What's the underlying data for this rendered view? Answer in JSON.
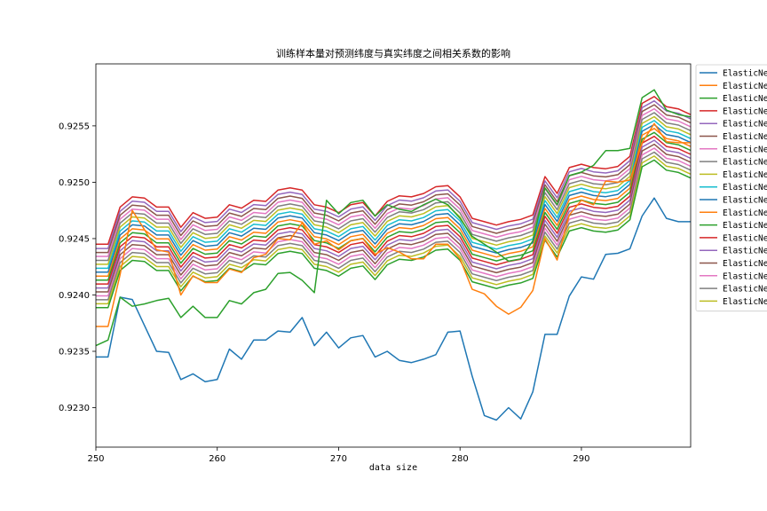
{
  "chart_data": {
    "type": "line",
    "title": "训练样本量对预测纬度与真实纬度之间相关系数的影响",
    "xlabel": "data size",
    "ylabel": "",
    "xlim": [
      250,
      299
    ],
    "ylim": [
      0.92265,
      0.92605
    ],
    "xticks": [
      250,
      260,
      270,
      280,
      290
    ],
    "yticks": [
      0.923,
      0.9235,
      0.924,
      0.9245,
      0.925,
      0.9255
    ],
    "ytick_labels": [
      "0.9230",
      "0.9235",
      "0.9240",
      "0.9245",
      "0.9250",
      "0.9255"
    ],
    "grid": false,
    "legend": {
      "placement": "upper-right-outside"
    },
    "x": [
      250,
      251,
      252,
      253,
      254,
      255,
      256,
      257,
      258,
      259,
      260,
      261,
      262,
      263,
      264,
      265,
      266,
      267,
      268,
      269,
      270,
      271,
      272,
      273,
      274,
      275,
      276,
      277,
      278,
      279,
      280,
      281,
      282,
      283,
      284,
      285,
      286,
      287,
      288,
      289,
      290,
      291,
      292,
      293,
      294,
      295,
      296,
      297,
      298,
      299
    ],
    "top_shape": [
      0.92445,
      0.92445,
      0.92478,
      0.92487,
      0.92486,
      0.92478,
      0.92478,
      0.9246,
      0.92473,
      0.92468,
      0.92469,
      0.9248,
      0.92477,
      0.92484,
      0.92483,
      0.92493,
      0.92495,
      0.92493,
      0.9248,
      0.92478,
      0.92473,
      0.9248,
      0.92482,
      0.9247,
      0.92483,
      0.92488,
      0.92487,
      0.9249,
      0.92496,
      0.92497,
      0.92487,
      0.92468,
      0.92465,
      0.92462,
      0.92465,
      0.92467,
      0.92471,
      0.92505,
      0.9249,
      0.92513,
      0.92516,
      0.92513,
      0.92512,
      0.92514,
      0.92523,
      0.9257,
      0.92576,
      0.92567,
      0.92565,
      0.9256
    ],
    "line_offsets": [
      0.0,
      -3.8e-05,
      -7.3e-05,
      -0.000108,
      -0.000143,
      -0.000178,
      -0.000213,
      -0.000248,
      -0.000283,
      -0.000318,
      -0.000353,
      -0.000388,
      -0.000423,
      -0.000458,
      -0.000493,
      -0.000528,
      -0.000563
    ],
    "series_colors": [
      "#d62728",
      "#9467bd",
      "#8c564b",
      "#e377c2",
      "#7f7f7f",
      "#bcbd22",
      "#17becf",
      "#1f77b4",
      "#ff7f0e",
      "#2ca02c",
      "#d62728",
      "#9467bd",
      "#8c564b",
      "#e377c2",
      "#7f7f7f",
      "#bcbd22",
      "#2ca02c"
    ],
    "noisy_series": [
      {
        "color": "#1f77b4",
        "values": [
          0.92345,
          0.92345,
          0.92398,
          0.92396,
          0.92373,
          0.9235,
          0.92349,
          0.92325,
          0.9233,
          0.92323,
          0.92325,
          0.92352,
          0.92343,
          0.9236,
          0.9236,
          0.92368,
          0.92367,
          0.9238,
          0.92355,
          0.92367,
          0.92353,
          0.92362,
          0.92364,
          0.92345,
          0.9235,
          0.92342,
          0.9234,
          0.92343,
          0.92347,
          0.92367,
          0.92368,
          0.92328,
          0.92293,
          0.92289,
          0.923,
          0.9229,
          0.92314,
          0.92365,
          0.92365,
          0.92399,
          0.92416,
          0.92414,
          0.92436,
          0.92437,
          0.92441,
          0.9247,
          0.92486,
          0.92468,
          0.92465,
          0.92465
        ]
      },
      {
        "color": "#ff7f0e",
        "values": [
          0.92372,
          0.92372,
          0.92418,
          0.92475,
          0.92458,
          0.9244,
          0.92438,
          0.924,
          0.92417,
          0.92411,
          0.92411,
          0.92423,
          0.9242,
          0.92433,
          0.92436,
          0.9245,
          0.92449,
          0.92464,
          0.92445,
          0.92448,
          0.9244,
          0.92448,
          0.9245,
          0.92436,
          0.92442,
          0.92438,
          0.92432,
          0.92432,
          0.92445,
          0.92445,
          0.92432,
          0.92405,
          0.92401,
          0.9239,
          0.92383,
          0.92389,
          0.92404,
          0.9245,
          0.92431,
          0.92471,
          0.92484,
          0.9248,
          0.92501,
          0.925,
          0.92502,
          0.92535,
          0.92552,
          0.92536,
          0.92535,
          0.92535
        ]
      },
      {
        "color": "#2ca02c",
        "values": [
          0.92355,
          0.9236,
          0.92398,
          0.9239,
          0.92392,
          0.92395,
          0.92397,
          0.9238,
          0.9239,
          0.9238,
          0.9238,
          0.92395,
          0.92392,
          0.92402,
          0.92405,
          0.92419,
          0.9242,
          0.92413,
          0.92402,
          0.92484,
          0.92472,
          0.92482,
          0.92484,
          0.9247,
          0.9248,
          0.92476,
          0.92474,
          0.9248,
          0.92485,
          0.9248,
          0.92468,
          0.92452,
          0.92445,
          0.92438,
          0.9243,
          0.92432,
          0.92448,
          0.92495,
          0.9248,
          0.92506,
          0.92509,
          0.92515,
          0.92528,
          0.92528,
          0.9253,
          0.92575,
          0.92582,
          0.92564,
          0.9256,
          0.92558
        ]
      }
    ],
    "series": [
      {
        "name": "ElasticNet",
        "color": "#1f77b4"
      },
      {
        "name": "ElasticNet",
        "color": "#ff7f0e"
      },
      {
        "name": "ElasticNet",
        "color": "#2ca02c"
      },
      {
        "name": "ElasticNet",
        "color": "#d62728"
      },
      {
        "name": "ElasticNet",
        "color": "#9467bd"
      },
      {
        "name": "ElasticNet",
        "color": "#8c564b"
      },
      {
        "name": "ElasticNet",
        "color": "#e377c2"
      },
      {
        "name": "ElasticNet",
        "color": "#7f7f7f"
      },
      {
        "name": "ElasticNet",
        "color": "#bcbd22"
      },
      {
        "name": "ElasticNet",
        "color": "#17becf"
      },
      {
        "name": "ElasticNet",
        "color": "#1f77b4"
      },
      {
        "name": "ElasticNet",
        "color": "#ff7f0e"
      },
      {
        "name": "ElasticNet",
        "color": "#2ca02c"
      },
      {
        "name": "ElasticNet",
        "color": "#d62728"
      },
      {
        "name": "ElasticNet",
        "color": "#9467bd"
      },
      {
        "name": "ElasticNet",
        "color": "#8c564b"
      },
      {
        "name": "ElasticNet",
        "color": "#e377c2"
      },
      {
        "name": "ElasticNet",
        "color": "#7f7f7f"
      },
      {
        "name": "ElasticNet",
        "color": "#bcbd22"
      }
    ]
  }
}
